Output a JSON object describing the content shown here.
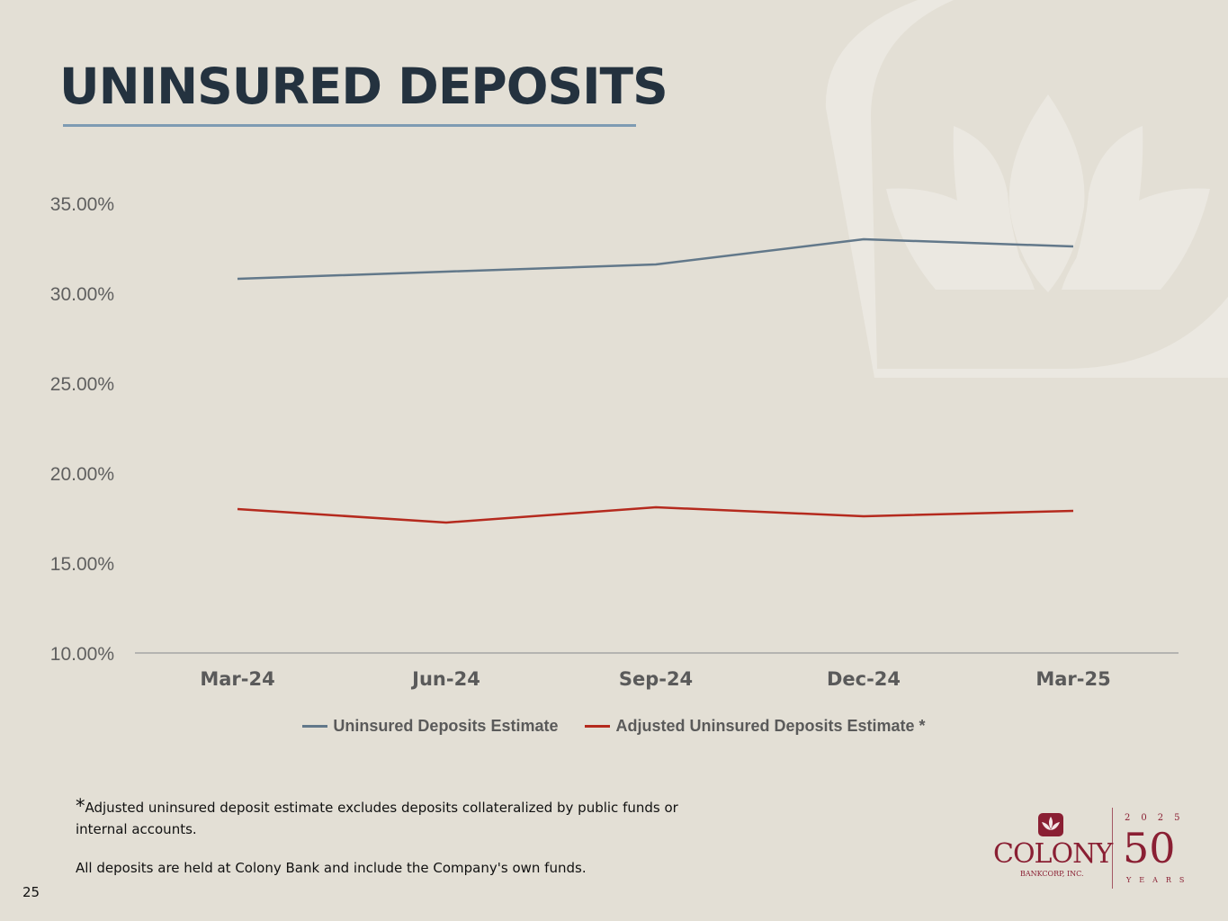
{
  "slide": {
    "title": "UNINSURED DEPOSITS",
    "page_number": "25",
    "footnote_star": "*",
    "footnote": "Adjusted uninsured deposit estimate excludes deposits collateralized by public funds or internal accounts.",
    "note": "All deposits are held at Colony Bank and include the Company's own funds.",
    "logo": {
      "name": "COLONY",
      "subtitle": "BANKCORP, INC.",
      "year": "2025",
      "anniversary": "50",
      "years_label": "YEARS",
      "color": "#8a1f33"
    }
  },
  "chart_data": {
    "type": "line",
    "categories": [
      "Mar-24",
      "Jun-24",
      "Sep-24",
      "Dec-24",
      "Mar-25"
    ],
    "series": [
      {
        "name": "Uninsured Deposits Estimate",
        "values": [
          30.8,
          31.2,
          31.6,
          33.0,
          32.6
        ],
        "color": "#62788a"
      },
      {
        "name": "Adjusted Uninsured Deposits Estimate *",
        "values": [
          18.0,
          17.25,
          18.1,
          17.6,
          17.9
        ],
        "color": "#b52a1e"
      }
    ],
    "y_ticks": [
      "35.00%",
      "30.00%",
      "25.00%",
      "20.00%",
      "15.00%",
      "10.00%"
    ],
    "ylim": [
      10,
      35
    ],
    "title": "",
    "xlabel": "",
    "ylabel": "",
    "grid": false,
    "legend": "bottom"
  }
}
